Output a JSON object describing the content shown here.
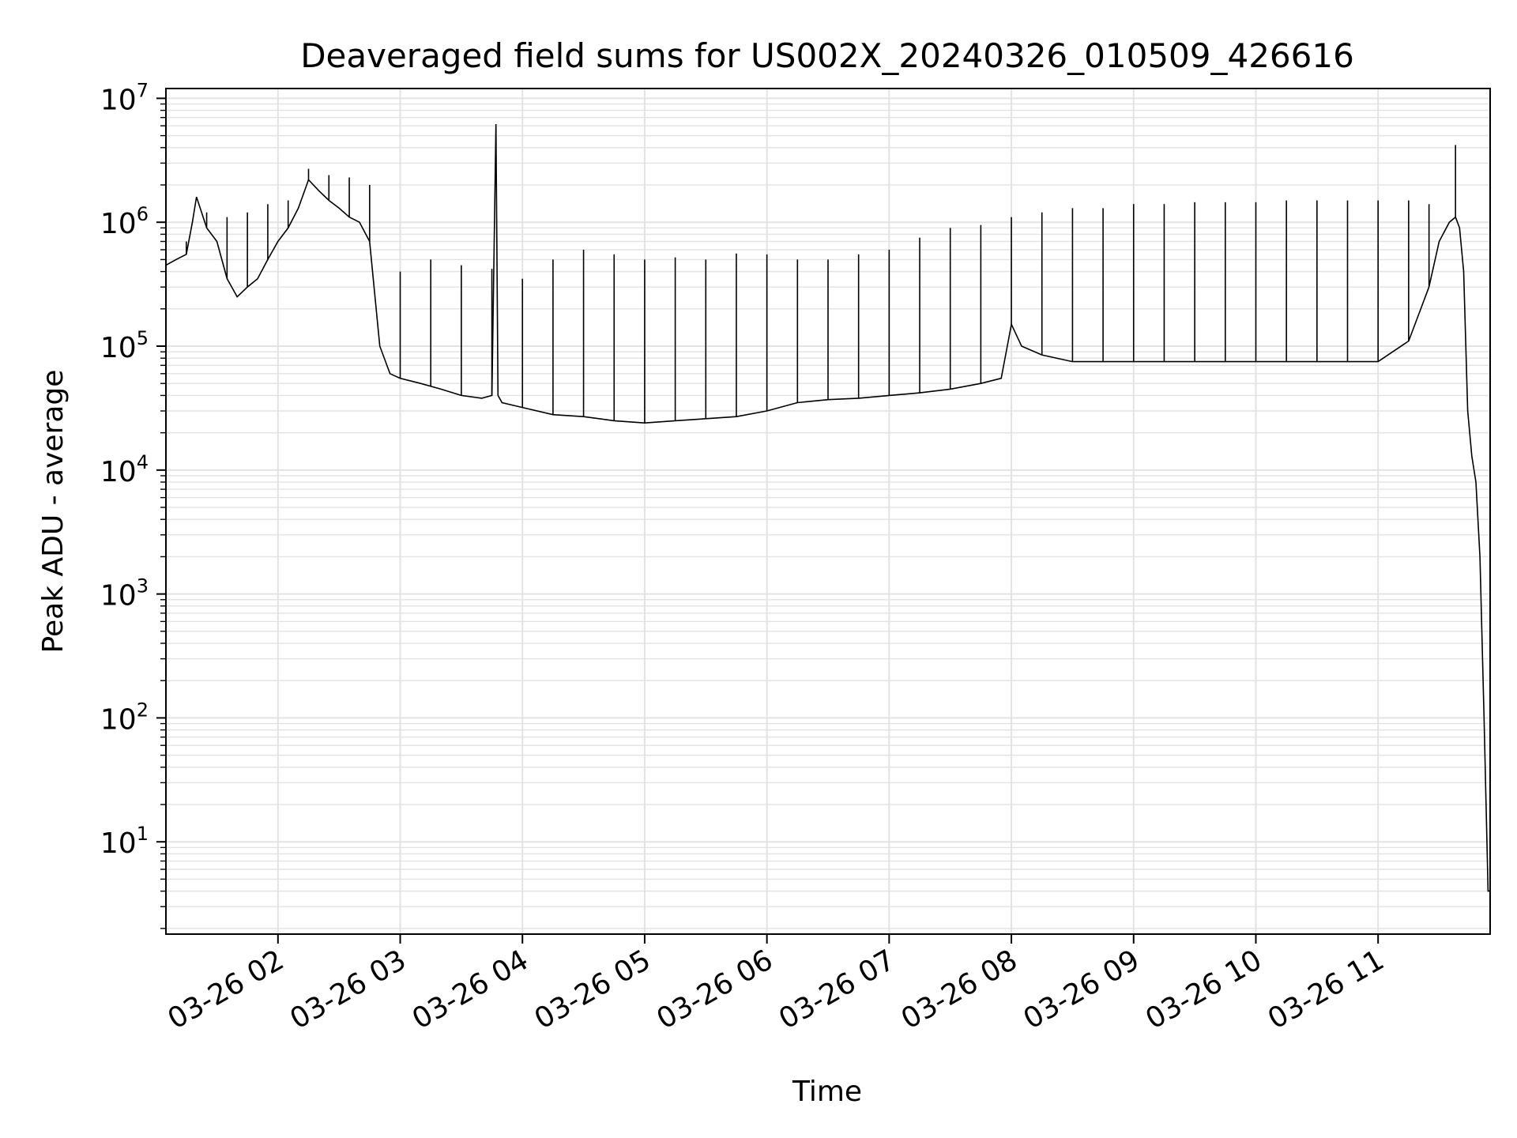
{
  "chart_data": {
    "type": "line",
    "title": "Deaveraged field sums for US002X_20240326_010509_426616",
    "xlabel": "Time",
    "ylabel": "Peak ADU - average",
    "yscale": "log",
    "ylim": [
      1.8,
      12000000
    ],
    "xlim": [
      "03-26 01:05",
      "03-26 11:55"
    ],
    "grid": true,
    "grid_minor": true,
    "line_color": "#000000",
    "grid_color": "#e3e3e3",
    "x_ticks": [
      "03-26 02",
      "03-26 03",
      "03-26 04",
      "03-26 05",
      "03-26 06",
      "03-26 07",
      "03-26 08",
      "03-26 09",
      "03-26 10",
      "03-26 11"
    ],
    "y_ticks": [
      {
        "base": "10",
        "exp": "1",
        "value": 10
      },
      {
        "base": "10",
        "exp": "2",
        "value": 100
      },
      {
        "base": "10",
        "exp": "3",
        "value": 1000
      },
      {
        "base": "10",
        "exp": "4",
        "value": 10000
      },
      {
        "base": "10",
        "exp": "5",
        "value": 100000
      },
      {
        "base": "10",
        "exp": "6",
        "value": 1000000
      },
      {
        "base": "10",
        "exp": "7",
        "value": 10000000
      }
    ],
    "series": [
      {
        "x": [
          "03-26 01:05",
          "03-26 01:10",
          "03-26 01:15",
          "03-26 01:18",
          "03-26 01:20",
          "03-26 01:25",
          "03-26 01:30",
          "03-26 01:35",
          "03-26 01:40",
          "03-26 01:45",
          "03-26 01:50",
          "03-26 01:55",
          "03-26 02:00",
          "03-26 02:05",
          "03-26 02:10",
          "03-26 02:15",
          "03-26 02:20",
          "03-26 02:25",
          "03-26 02:30",
          "03-26 02:35",
          "03-26 02:40",
          "03-26 02:45",
          "03-26 02:50",
          "03-26 02:55",
          "03-26 03:00",
          "03-26 03:10",
          "03-26 03:20",
          "03-26 03:30",
          "03-26 03:40",
          "03-26 03:45",
          "03-26 03:47",
          "03-26 03:48",
          "03-26 03:50",
          "03-26 04:00",
          "03-26 04:15",
          "03-26 04:30",
          "03-26 04:45",
          "03-26 05:00",
          "03-26 05:15",
          "03-26 05:30",
          "03-26 05:45",
          "03-26 06:00",
          "03-26 06:15",
          "03-26 06:30",
          "03-26 06:45",
          "03-26 07:00",
          "03-26 07:15",
          "03-26 07:30",
          "03-26 07:45",
          "03-26 07:55",
          "03-26 08:00",
          "03-26 08:05",
          "03-26 08:15",
          "03-26 08:30",
          "03-26 08:45",
          "03-26 09:00",
          "03-26 09:30",
          "03-26 10:00",
          "03-26 10:30",
          "03-26 11:00",
          "03-26 11:15",
          "03-26 11:25",
          "03-26 11:30",
          "03-26 11:35",
          "03-26 11:38",
          "03-26 11:40",
          "03-26 11:42",
          "03-26 11:44",
          "03-26 11:46",
          "03-26 11:48",
          "03-26 11:50",
          "03-26 11:52",
          "03-26 11:54",
          "03-26 11:55"
        ],
        "y": [
          450000,
          500000,
          550000,
          1000000,
          1600000,
          900000,
          700000,
          350000,
          250000,
          300000,
          350000,
          500000,
          700000,
          900000,
          1300000,
          2200000,
          1800000,
          1500000,
          1300000,
          1100000,
          1000000,
          700000,
          100000,
          60000,
          55000,
          50000,
          45000,
          40000,
          38000,
          40000,
          6200000,
          40000,
          35000,
          32000,
          28000,
          27000,
          25000,
          24000,
          25000,
          26000,
          27000,
          30000,
          35000,
          37000,
          38000,
          40000,
          42000,
          45000,
          50000,
          55000,
          150000,
          100000,
          85000,
          75000,
          75000,
          75000,
          75000,
          75000,
          75000,
          75000,
          110000,
          300000,
          700000,
          1000000,
          1100000,
          900000,
          400000,
          30000,
          13000,
          8000,
          2000,
          100,
          4,
          4
        ],
        "x_hi": [
          "03-26 01:15",
          "03-26 01:25",
          "03-26 01:35",
          "03-26 01:45",
          "03-26 01:55",
          "03-26 02:05",
          "03-26 02:15",
          "03-26 02:25",
          "03-26 02:35",
          "03-26 02:45",
          "03-26 03:00",
          "03-26 03:15",
          "03-26 03:30",
          "03-26 03:45",
          "03-26 03:47",
          "03-26 04:00",
          "03-26 04:15",
          "03-26 04:30",
          "03-26 04:45",
          "03-26 05:00",
          "03-26 05:15",
          "03-26 05:30",
          "03-26 05:45",
          "03-26 06:00",
          "03-26 06:15",
          "03-26 06:30",
          "03-26 06:45",
          "03-26 07:00",
          "03-26 07:15",
          "03-26 07:30",
          "03-26 07:45",
          "03-26 08:00",
          "03-26 08:15",
          "03-26 08:30",
          "03-26 08:45",
          "03-26 09:00",
          "03-26 09:15",
          "03-26 09:30",
          "03-26 09:45",
          "03-26 10:00",
          "03-26 10:15",
          "03-26 10:30",
          "03-26 10:45",
          "03-26 11:00",
          "03-26 11:15",
          "03-26 11:25",
          "03-26 11:38"
        ],
        "y_hi": [
          700000,
          1200000,
          1100000,
          1200000,
          1400000,
          1500000,
          2700000,
          2400000,
          2300000,
          2000000,
          400000,
          500000,
          450000,
          420000,
          6200000,
          350000,
          500000,
          600000,
          550000,
          500000,
          520000,
          500000,
          560000,
          550000,
          500000,
          500000,
          550000,
          600000,
          750000,
          900000,
          950000,
          1100000,
          1200000,
          1300000,
          1300000,
          1400000,
          1400000,
          1450000,
          1450000,
          1450000,
          1500000,
          1500000,
          1500000,
          1500000,
          1500000,
          1400000,
          4200000
        ]
      }
    ]
  }
}
